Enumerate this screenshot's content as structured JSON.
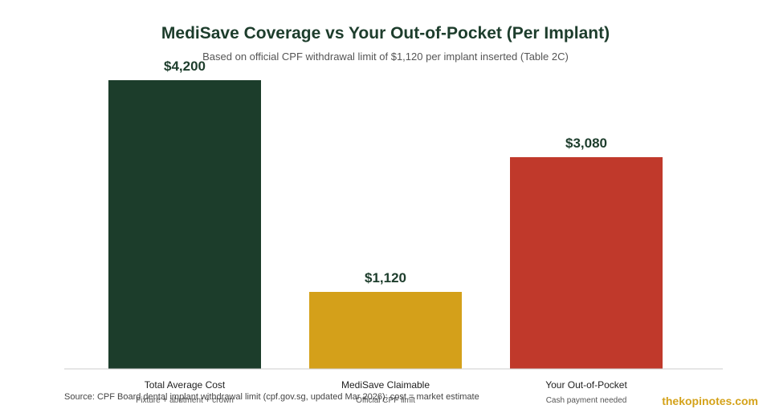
{
  "chart_data": {
    "type": "bar",
    "title": "MediSave Coverage vs Your Out-of-Pocket (Per Implant)",
    "subtitle": "Based on official CPF withdrawal limit of $1,120 per implant inserted (Table 2C)",
    "categories": [
      "Total Average Cost",
      "MediSave Claimable",
      "Your Out-of-Pocket"
    ],
    "sublabels": [
      "Fixture + abutment + crown",
      "Official CPF limit",
      "Cash payment needed"
    ],
    "values": [
      4200,
      1120,
      3080
    ],
    "value_labels": [
      "$4,200",
      "$1,120",
      "$3,080"
    ],
    "colors": [
      "#1c3d2b",
      "#d4a01a",
      "#c0392b"
    ],
    "ylim": [
      0,
      4200
    ],
    "grid": false,
    "legend": "none"
  },
  "footer": {
    "source": "Source: CPF Board dental implant withdrawal limit (cpf.gov.sg, updated Mar 2026); cost = market estimate",
    "brand": "thekopinotes.com"
  }
}
